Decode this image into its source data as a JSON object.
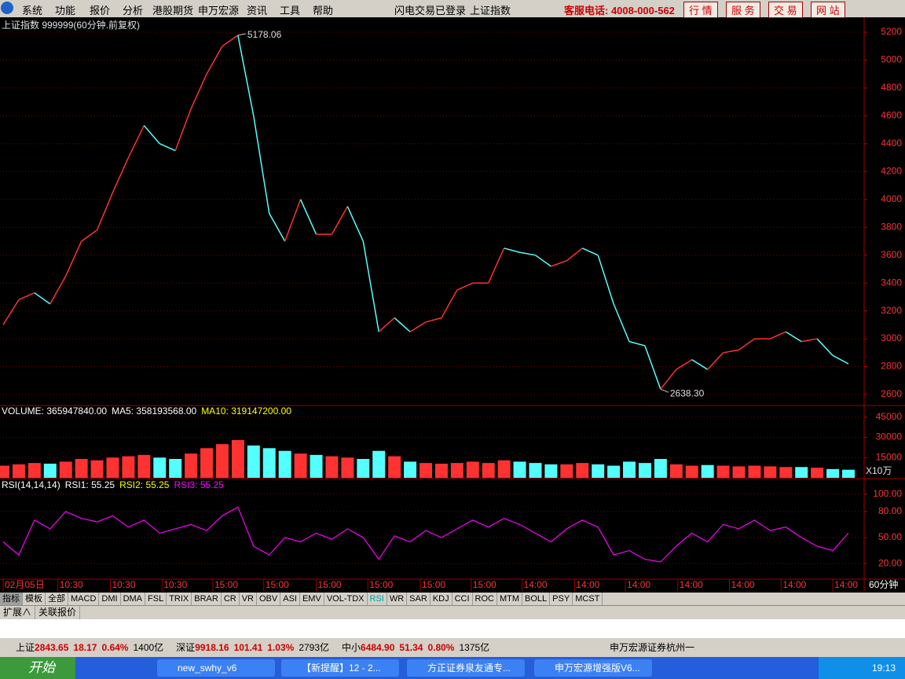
{
  "menu": {
    "items": [
      "系统",
      "功能",
      "报价",
      "分析",
      "港股期货",
      "申万宏源",
      "资讯",
      "工具",
      "帮助"
    ],
    "status": "闪电交易已登录",
    "symbol": "上证指数",
    "hotline": "客服电话: 4008-000-562",
    "buttons": [
      "行 情",
      "服 务",
      "交 易",
      "网 站"
    ]
  },
  "chart_data": [
    {
      "type": "line",
      "title": "上证指数 999999(60分钟.前复权)",
      "up_color": "#ff3232",
      "down_color": "#54ffff",
      "annotations": [
        "5178.06",
        "2638.30"
      ],
      "values": [
        3100,
        3280,
        3330,
        3250,
        3450,
        3700,
        3780,
        4050,
        4300,
        4530,
        4400,
        4350,
        4650,
        4900,
        5100,
        5178.06,
        4600,
        3900,
        3700,
        4000,
        3750,
        3750,
        3950,
        3700,
        3050,
        3150,
        3050,
        3120,
        3150,
        3350,
        3400,
        3400,
        3650,
        3620,
        3600,
        3520,
        3560,
        3650,
        3600,
        3250,
        2980,
        2950,
        2638.3,
        2780,
        2850,
        2780,
        2900,
        2920,
        3000,
        3000,
        3050,
        2980,
        3000,
        2880,
        2820
      ],
      "xlim": [
        0,
        54
      ],
      "ylim": [
        2521,
        5279
      ],
      "yticks": [
        2600,
        2800,
        3000,
        3200,
        3400,
        3600,
        3800,
        4000,
        4200,
        4400,
        4600,
        4800,
        5000,
        5200
      ],
      "xticks": [
        {
          "value": 0,
          "label": "02月05日"
        },
        {
          "value": 3.5,
          "label": "10:30"
        },
        {
          "value": 6.85,
          "label": "10:30"
        },
        {
          "value": 10.15,
          "label": "10:30"
        },
        {
          "value": 13.4,
          "label": "15:00"
        },
        {
          "value": 16.65,
          "label": "15:00"
        },
        {
          "value": 20,
          "label": "15:00"
        },
        {
          "value": 23.3,
          "label": "15:00"
        },
        {
          "value": 26.65,
          "label": "15:00"
        },
        {
          "value": 29.9,
          "label": "15:00"
        },
        {
          "value": 33.15,
          "label": "14:00"
        },
        {
          "value": 36.5,
          "label": "14:00"
        },
        {
          "value": 39.75,
          "label": "14:00"
        },
        {
          "value": 43.1,
          "label": "14:00"
        },
        {
          "value": 46.4,
          "label": "14:00"
        },
        {
          "value": 49.7,
          "label": "14:00"
        },
        {
          "value": 53,
          "label": "14:00"
        }
      ]
    },
    {
      "type": "bar",
      "legend": [
        {
          "name": "VOLUME: 365947840.00",
          "color": "#ffffff"
        },
        {
          "name": "MA5: 358193568.00",
          "color": "#ffffff"
        },
        {
          "name": "MA10: 319147200.00",
          "color": "#ffff00"
        }
      ],
      "unit": "X10万",
      "ylim": [
        0,
        52500
      ],
      "yticks": [
        15000,
        30000,
        45000
      ],
      "values": [
        9000,
        10000,
        11000,
        10500,
        12000,
        14000,
        13000,
        15000,
        16000,
        17000,
        15000,
        14000,
        18000,
        22000,
        25000,
        28000,
        24000,
        22000,
        20000,
        18000,
        17000,
        16000,
        15000,
        14000,
        20000,
        16000,
        12000,
        11000,
        10500,
        11000,
        12000,
        11000,
        13000,
        12000,
        11000,
        10000,
        10000,
        11000,
        10000,
        9000,
        12000,
        11000,
        14000,
        10000,
        9000,
        9500,
        9000,
        8500,
        9000,
        8500,
        8000,
        8000,
        7500,
        6500,
        6000
      ]
    },
    {
      "type": "line",
      "legend": [
        {
          "name": "RSI(14,14,14)",
          "color": "#ffffff"
        },
        {
          "name": "RSI1: 55.25",
          "color": "#ffffff"
        },
        {
          "name": "RSI2: 55.25",
          "color": "#ffff00"
        },
        {
          "name": "RSI3: 55.25",
          "color": "#ff00ff"
        }
      ],
      "color": "#ff00ff",
      "ylim": [
        3,
        115
      ],
      "yticks": [
        {
          "value": 20,
          "label": "20.00"
        },
        {
          "value": 50,
          "label": "50.00"
        },
        {
          "value": 80,
          "label": "80.00"
        },
        {
          "value": 100,
          "label": "100.00"
        }
      ],
      "values": [
        45,
        30,
        70,
        60,
        80,
        72,
        68,
        75,
        62,
        70,
        55,
        60,
        65,
        58,
        75,
        85,
        40,
        30,
        50,
        45,
        55,
        48,
        60,
        50,
        25,
        52,
        45,
        58,
        50,
        60,
        70,
        62,
        72,
        65,
        55,
        45,
        60,
        70,
        62,
        30,
        35,
        25,
        22,
        40,
        55,
        45,
        65,
        60,
        70,
        58,
        62,
        50,
        40,
        35,
        55
      ]
    }
  ],
  "period": "60分钟",
  "tabs": [
    "指标",
    "模板",
    "全部",
    "MACD",
    "DMI",
    "DMA",
    "FSL",
    "TRIX",
    "BRAR",
    "CR",
    "VR",
    "OBV",
    "ASI",
    "EMV",
    "VOL-TDX",
    "RSI",
    "WR",
    "SAR",
    "KDJ",
    "CCI",
    "ROC",
    "MTM",
    "BOLL",
    "PSY",
    "MCST"
  ],
  "sub_tabs": [
    "扩展∧",
    "关联报价"
  ],
  "status_bar": {
    "quotes": [
      {
        "name": "上证",
        "price": "2843.65",
        "change": "18.17",
        "pct": "0.64%",
        "amount": "1400亿"
      },
      {
        "name": "深证",
        "price": "9918.16",
        "change": "101.41",
        "pct": "1.03%",
        "amount": "2793亿"
      },
      {
        "name": "中小",
        "price": "6484.90",
        "change": "51.34",
        "pct": "0.80%",
        "amount": "1375亿"
      }
    ],
    "broker": "申万宏源证券杭州一"
  },
  "taskbar": {
    "start": "开始",
    "windows": [
      "new_swhy_v6",
      "【新提醒】12 - 2...",
      "方正证券泉友通专...",
      "申万宏源增强版V6..."
    ],
    "clock": "19:13"
  }
}
